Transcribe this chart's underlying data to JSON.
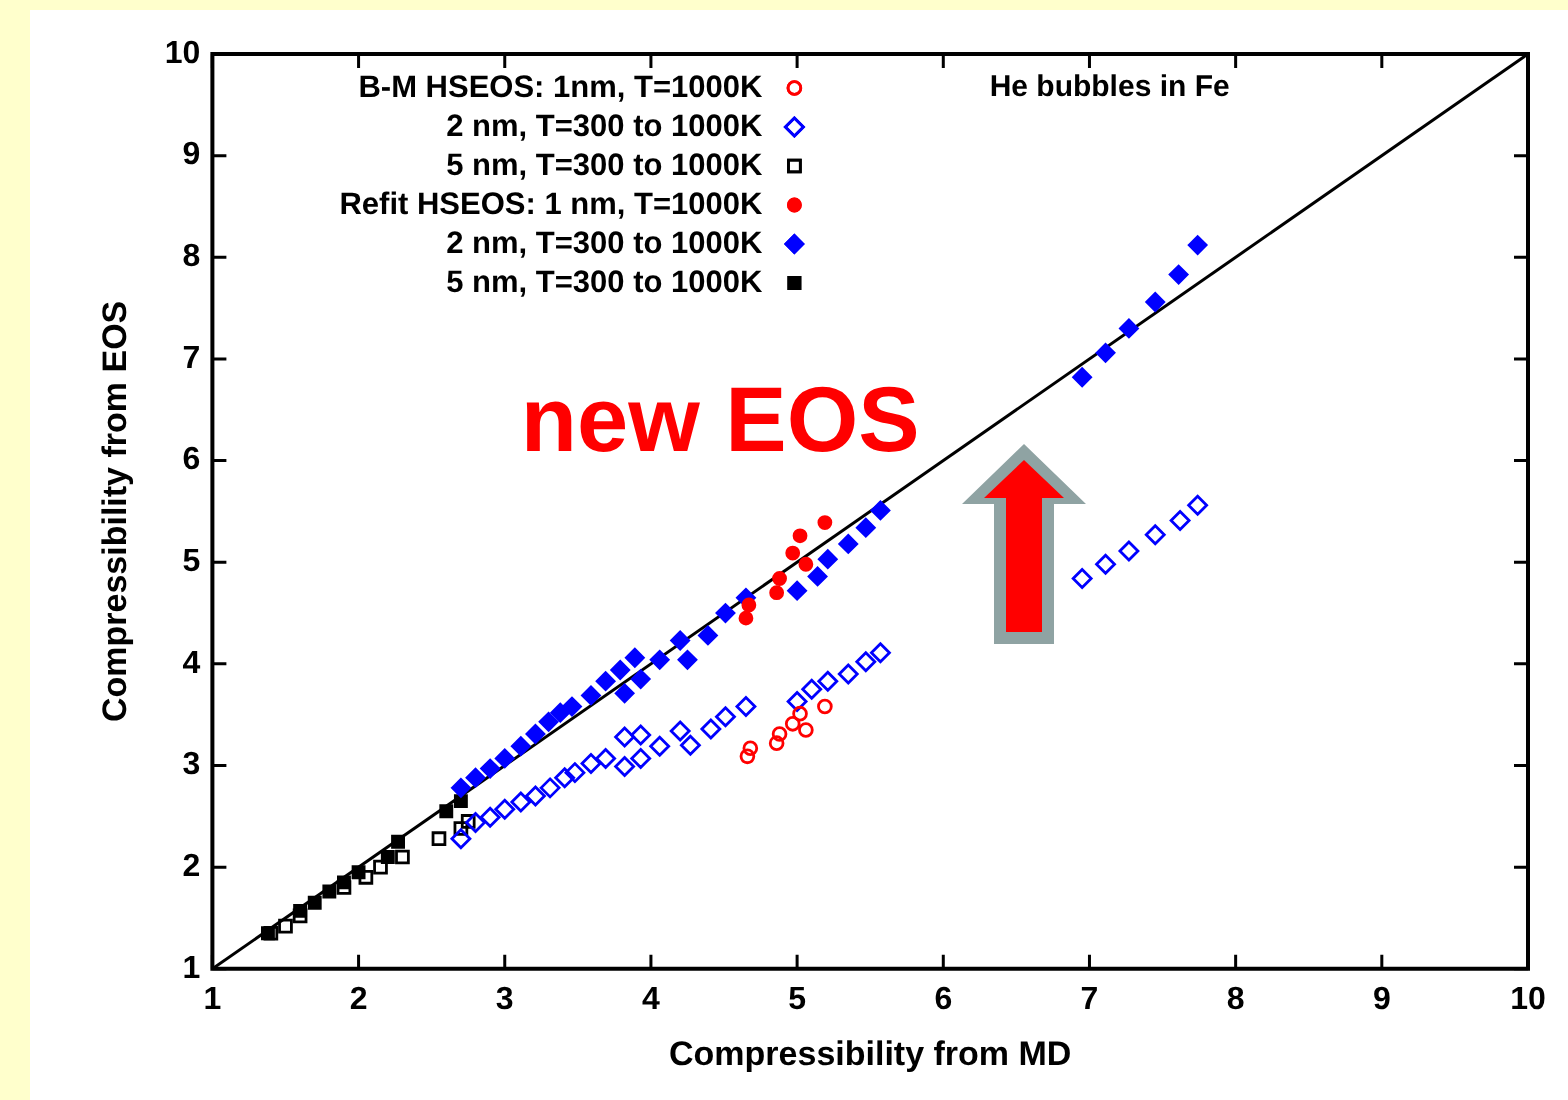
{
  "chart_data": {
    "type": "scatter",
    "xlabel": "Compressibility from MD",
    "ylabel": "Compressibility from EOS",
    "xlim": [
      1,
      10
    ],
    "ylim": [
      1,
      10
    ],
    "xticks": [
      1,
      2,
      3,
      4,
      5,
      6,
      7,
      8,
      9,
      10
    ],
    "yticks": [
      1,
      2,
      3,
      4,
      5,
      6,
      7,
      8,
      9,
      10
    ],
    "grid": false,
    "legend": "top left",
    "annotations": [
      "He bubbles in Fe",
      "new EOS"
    ],
    "series": [
      {
        "name": "B-M HSEOS: 1nm, T=1000K",
        "color": "#ff0000",
        "marker": "circle",
        "x": [
          4.66,
          4.68,
          4.86,
          4.88,
          4.97,
          5.02,
          5.06,
          5.19
        ],
        "values": [
          3.09,
          3.17,
          3.22,
          3.31,
          3.41,
          3.51,
          3.35,
          3.58
        ]
      },
      {
        "name": "2 nm, T=300 to 1000K",
        "color": "#0000ff",
        "marker": "diamond",
        "x": [
          2.7,
          2.8,
          2.9,
          3.0,
          3.11,
          3.21,
          3.31,
          3.41,
          3.48,
          3.59,
          3.69,
          3.82,
          3.93,
          3.82,
          3.93,
          4.06,
          4.2,
          4.27,
          4.41,
          4.51,
          4.65,
          5.0,
          5.1,
          5.21,
          5.35,
          5.47,
          5.57,
          6.95,
          7.11,
          7.27,
          7.45,
          7.62,
          7.74
        ],
        "values": [
          2.28,
          2.44,
          2.49,
          2.57,
          2.64,
          2.7,
          2.78,
          2.88,
          2.93,
          3.02,
          3.07,
          2.99,
          3.07,
          3.28,
          3.3,
          3.19,
          3.34,
          3.2,
          3.36,
          3.48,
          3.58,
          3.63,
          3.75,
          3.83,
          3.9,
          4.02,
          4.11,
          4.84,
          4.98,
          5.11,
          5.27,
          5.41,
          5.56
        ]
      },
      {
        "name": "5 nm, T=300 to 1000K",
        "color": "#000000",
        "marker": "square",
        "x": [
          1.4,
          1.5,
          1.6,
          1.9,
          2.05,
          2.15,
          2.3,
          2.55,
          2.7,
          2.75
        ],
        "values": [
          1.35,
          1.42,
          1.52,
          1.8,
          1.9,
          2.0,
          2.1,
          2.28,
          2.38,
          2.45
        ]
      },
      {
        "name": "Refit HSEOS: 1 nm, T=1000K",
        "color": "#ff0000",
        "marker": "circle",
        "x": [
          4.65,
          4.67,
          4.86,
          4.88,
          4.97,
          5.02,
          5.06,
          5.19
        ],
        "values": [
          4.45,
          4.58,
          4.7,
          4.84,
          5.09,
          5.26,
          4.98,
          5.39
        ]
      },
      {
        "name": "2 nm, T=300 to 1000K",
        "color": "#0000ff",
        "marker": "diamond",
        "x": [
          2.7,
          2.8,
          2.9,
          3.0,
          3.11,
          3.21,
          3.3,
          3.38,
          3.46,
          3.59,
          3.69,
          3.79,
          3.82,
          3.89,
          3.93,
          4.06,
          4.2,
          4.25,
          4.39,
          4.51,
          4.65,
          5.0,
          5.14,
          5.21,
          5.35,
          5.47,
          5.57,
          6.95,
          7.11,
          7.27,
          7.45,
          7.61,
          7.74
        ],
        "values": [
          2.78,
          2.88,
          2.97,
          3.07,
          3.19,
          3.31,
          3.43,
          3.52,
          3.58,
          3.69,
          3.83,
          3.94,
          3.71,
          4.06,
          3.85,
          4.04,
          4.23,
          4.04,
          4.28,
          4.5,
          4.65,
          4.72,
          4.86,
          5.03,
          5.18,
          5.34,
          5.51,
          6.82,
          7.06,
          7.3,
          7.56,
          7.83,
          8.12
        ]
      },
      {
        "name": "5 nm, T=300 to 1000K",
        "color": "#000000",
        "marker": "square",
        "x": [
          1.38,
          1.6,
          1.7,
          1.8,
          1.9,
          2.0,
          2.2,
          2.27,
          2.6,
          2.7
        ],
        "values": [
          1.35,
          1.57,
          1.65,
          1.76,
          1.85,
          1.95,
          2.1,
          2.25,
          2.55,
          2.65
        ]
      },
      {
        "type": "line",
        "color": "#000000",
        "marker": "none",
        "x": [
          1,
          10
        ],
        "values": [
          1,
          10
        ]
      }
    ]
  }
}
